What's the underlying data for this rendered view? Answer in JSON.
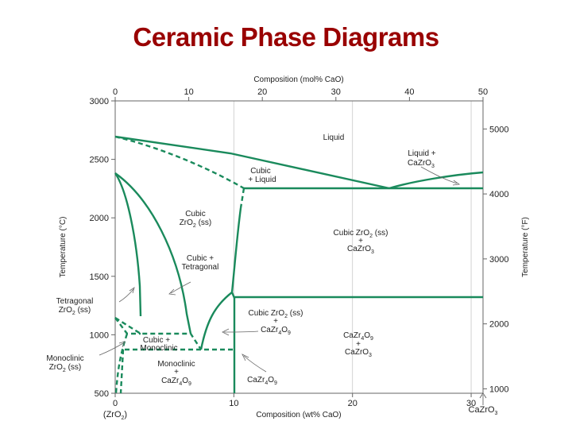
{
  "title": "Ceramic Phase Diagrams",
  "colors": {
    "title": "#990000",
    "phase_line": "#1a8a5c",
    "axis": "#555555",
    "grid": "#bbbbbb"
  },
  "chart_data": {
    "type": "phase-diagram",
    "top_axis": {
      "label": "Composition (mol% CaO)",
      "ticks": [
        "0",
        "10",
        "20",
        "30",
        "40",
        "50"
      ],
      "range": [
        0,
        50
      ]
    },
    "bottom_axis": {
      "label": "Composition (wt% CaO)",
      "ticks": [
        "0",
        "10",
        "20",
        "30"
      ],
      "range": [
        0,
        31
      ],
      "left_end_label": "(ZrO2)",
      "right_end_label": "CaZrO3"
    },
    "left_axis": {
      "label": "Temperature (°C)",
      "ticks": [
        "500",
        "1000",
        "1500",
        "2000",
        "2500",
        "3000"
      ],
      "range": [
        500,
        3000
      ]
    },
    "right_axis": {
      "label": "Temperature (°F)",
      "ticks": [
        "1000",
        "2000",
        "3000",
        "4000",
        "5000"
      ]
    },
    "invariant_temperatures_C": [
      2250,
      1400,
      1140,
      990
    ],
    "regions": [
      {
        "id": "liquid",
        "label": "Liquid"
      },
      {
        "id": "liquid-cazro3",
        "label": "Liquid + CaZrO3"
      },
      {
        "id": "cubic-liquid",
        "label": "Cubic + Liquid"
      },
      {
        "id": "cubic-zro2",
        "label": "Cubic ZrO2 (ss)"
      },
      {
        "id": "cubic-zro2-cazro3",
        "label": "Cubic ZrO2 (ss) + CaZrO3"
      },
      {
        "id": "cubic-tetragonal",
        "label": "Cubic + Tetragonal"
      },
      {
        "id": "tetragonal-zro2",
        "label": "Tetragonal ZrO2 (ss)"
      },
      {
        "id": "cubic-zro2-cazr4o9",
        "label": "Cubic ZrO2 (ss) + CaZr4O9"
      },
      {
        "id": "cazr4o9-cazro3",
        "label": "CaZr4O9 + CaZrO3"
      },
      {
        "id": "cubic-monoclinic",
        "label": "Cubic + Monoclinic"
      },
      {
        "id": "monoclinic-zro2",
        "label": "Monoclinic ZrO2 (ss)"
      },
      {
        "id": "monoclinic-cazr4o9",
        "label": "Monoclinic + CaZr4O9"
      },
      {
        "id": "cazr4o9",
        "label": "CaZr4O9"
      }
    ]
  },
  "labels": {
    "liquid": "Liquid",
    "liq_cazro3_1": "Liquid +",
    "liq_cazro3_2": "CaZrO",
    "cubic_liq_1": "Cubic",
    "cubic_liq_2": "+ Liquid",
    "cubic_zro2_1": "Cubic",
    "cubic_zro2_2": "ZrO",
    "cubic_zro2_3": " (ss)",
    "czc_1": "Cubic ZrO",
    "czc_2": " (ss)",
    "czc_3": "+",
    "czc_4": "CaZrO",
    "ct_1": "Cubic +",
    "ct_2": "Tetragonal",
    "tet_1": "Tetragonal",
    "tet_2": "ZrO",
    "tet_3": " (ss)",
    "cz49_1": "Cubic ZrO",
    "cz49_2": " (ss)",
    "cz49_3": "+",
    "cz49_4": "CaZr",
    "cz49_5": "O",
    "c49c3_1": "CaZr",
    "c49c3_2": "O",
    "c49c3_3": "+",
    "c49c3_4": "CaZrO",
    "cm_1": "Cubic +",
    "cm_2": "Monoclinic",
    "mono_1": "Monoclinic",
    "mono_2": "ZrO",
    "mono_3": " (ss)",
    "mc_1": "Monoclinic",
    "mc_2": "+",
    "mc_3": "CaZr",
    "mc_4": "O",
    "c49_1": "CaZr",
    "c49_2": "O",
    "sub2": "2",
    "sub3": "3",
    "sub4": "4",
    "sub9": "9"
  }
}
